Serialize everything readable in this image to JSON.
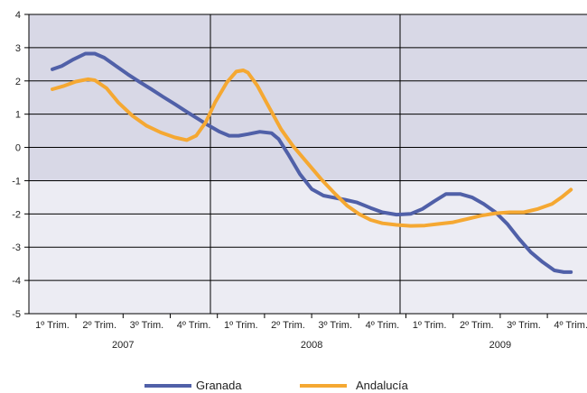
{
  "chart_data": {
    "type": "line",
    "ylim": [
      -5,
      4
    ],
    "yticks": [
      "4",
      "3",
      "2",
      "1",
      "0",
      "-1",
      "-2",
      "-3",
      "-4",
      "-5"
    ],
    "categories": [
      "1º Trim.",
      "2º Trim.",
      "3º Trim.",
      "4º Trim.",
      "1º Trim.",
      "2º Trim.",
      "3º Trim.",
      "4º Trim.",
      "1º Trim.",
      "2º Trim.",
      "3º Trim.",
      "4º Trim."
    ],
    "years": [
      "2007",
      "2008",
      "2009"
    ],
    "grid": true,
    "legend_placement": "bottom",
    "series": [
      {
        "name": "Granada",
        "color": "#5060a8",
        "x": [
          0,
          0.2,
          0.45,
          0.7,
          0.9,
          1.1,
          1.35,
          1.6,
          1.85,
          2.1,
          2.35,
          2.6,
          2.85,
          3.1,
          3.3,
          3.55,
          3.75,
          3.95,
          4.15,
          4.4,
          4.65,
          4.8,
          5.0,
          5.25,
          5.5,
          5.75,
          6.0,
          6.2,
          6.45,
          6.75,
          7.0,
          7.3,
          7.6,
          7.85,
          8.1,
          8.35,
          8.65,
          8.9,
          9.15,
          9.4,
          9.65,
          9.9,
          10.15,
          10.4,
          10.65,
          10.85,
          11.0
        ],
        "values": [
          2.35,
          2.45,
          2.65,
          2.82,
          2.82,
          2.7,
          2.45,
          2.2,
          1.97,
          1.75,
          1.52,
          1.3,
          1.07,
          0.85,
          0.67,
          0.47,
          0.35,
          0.35,
          0.4,
          0.47,
          0.43,
          0.25,
          -0.2,
          -0.8,
          -1.25,
          -1.45,
          -1.52,
          -1.57,
          -1.65,
          -1.82,
          -1.95,
          -2.02,
          -2.0,
          -1.85,
          -1.62,
          -1.4,
          -1.4,
          -1.5,
          -1.7,
          -1.95,
          -2.3,
          -2.75,
          -3.15,
          -3.45,
          -3.7,
          -3.75,
          -3.75
        ]
      },
      {
        "name": "Andalucía",
        "color": "#f5a832",
        "x": [
          0,
          0.25,
          0.5,
          0.75,
          0.9,
          1.15,
          1.4,
          1.7,
          2.0,
          2.3,
          2.6,
          2.85,
          3.05,
          3.25,
          3.45,
          3.7,
          3.9,
          4.05,
          4.15,
          4.35,
          4.6,
          4.85,
          5.1,
          5.4,
          5.7,
          6.0,
          6.25,
          6.5,
          6.75,
          7.0,
          7.3,
          7.6,
          7.9,
          8.2,
          8.5,
          8.8,
          9.1,
          9.4,
          9.7,
          10.0,
          10.3,
          10.6,
          10.8,
          11.0
        ],
        "values": [
          1.75,
          1.85,
          1.98,
          2.05,
          2.02,
          1.78,
          1.35,
          0.95,
          0.65,
          0.45,
          0.3,
          0.22,
          0.35,
          0.75,
          1.35,
          1.95,
          2.28,
          2.32,
          2.25,
          1.85,
          1.2,
          0.55,
          0.05,
          -0.45,
          -0.95,
          -1.4,
          -1.75,
          -2.0,
          -2.18,
          -2.28,
          -2.33,
          -2.36,
          -2.35,
          -2.3,
          -2.25,
          -2.15,
          -2.05,
          -1.98,
          -1.95,
          -1.95,
          -1.85,
          -1.7,
          -1.5,
          -1.27
        ]
      }
    ]
  }
}
